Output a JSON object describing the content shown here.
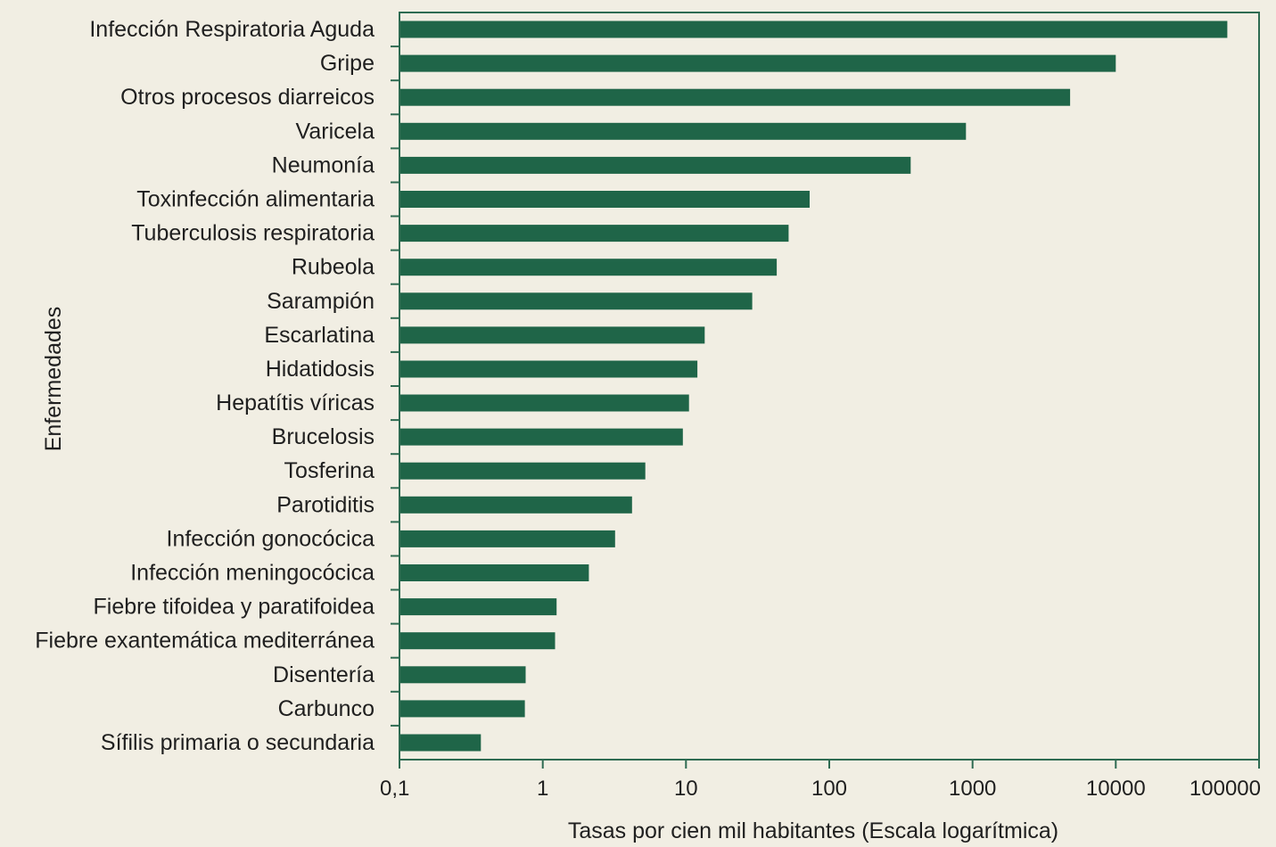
{
  "chart_data": {
    "type": "bar",
    "orientation": "horizontal",
    "scale": "log",
    "categories": [
      "Infección Respiratoria Aguda",
      "Gripe",
      "Otros procesos diarreicos",
      "Varicela",
      "Neumonía",
      "Toxinfección alimentaria",
      "Tuberculosis respiratoria",
      "Rubeola",
      "Sarampión",
      "Escarlatina",
      "Hidatidosis",
      "Hepatítis víricas",
      "Brucelosis",
      "Tosferina",
      "Parotiditis",
      "Infección gonocócica",
      "Infección meningocócica",
      "Fiebre tifoidea y paratifoidea",
      "Fiebre exantemática mediterránea",
      "Disentería",
      "Carbunco",
      "Sífilis primaria o secundaria"
    ],
    "values": [
      60000,
      10000,
      4800,
      900,
      370,
      73,
      52,
      43,
      29,
      13.5,
      12,
      10.5,
      9.5,
      5.2,
      4.2,
      3.2,
      2.1,
      1.25,
      1.22,
      0.76,
      0.75,
      0.37
    ],
    "xlabel": "Tasas por cien mil habitantes (Escala logarítmica)",
    "ylabel": "Enfermedades",
    "xticks": [
      "0,1",
      "1",
      "10",
      "100",
      "1000",
      "10000",
      "100000"
    ],
    "xlim": [
      0.1,
      100000
    ],
    "bar_color": "#1f6548",
    "frame_color": "#2e6b52",
    "grid": false
  }
}
